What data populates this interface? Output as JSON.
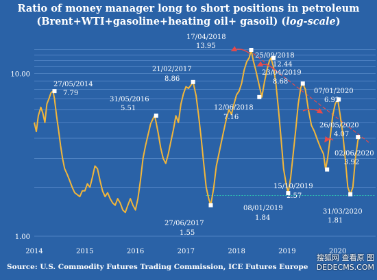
{
  "title_line1": "Ratio of money manager long to short positions in petroleum",
  "title_line2_main": "(Brent+WTI+gasoline+heating oil+ gasoil) (",
  "title_line2_italic": "log-scale",
  "title_line2_end": ")",
  "source": "Source: U.S. Commodity Futures Trading Commission, ICE Futures Europe",
  "watermark_line1": "搜狐网 查看原 图",
  "watermark_line2": "DEDECMS.COM",
  "colors": {
    "background": "#2a62a7",
    "series": "#f2b63a",
    "gridline": "#5a8ccc",
    "trend": "#e84a4a",
    "baseline": "#2fc7b1",
    "marker": "#ffffff"
  },
  "chart_data": {
    "type": "line",
    "yscale": "log",
    "ylim": [
      1.0,
      14.5
    ],
    "xlim": [
      2014.0,
      2020.75
    ],
    "yticks": [
      {
        "value": 1.0,
        "label": "1.00"
      },
      {
        "value": 10.0,
        "label": "10.00"
      }
    ],
    "xticks": [
      {
        "value": 2014,
        "label": "2014"
      },
      {
        "value": 2015,
        "label": "2015"
      },
      {
        "value": 2016,
        "label": "2016"
      },
      {
        "value": 2017,
        "label": "2017"
      },
      {
        "value": 2018,
        "label": "2018"
      },
      {
        "value": 2019,
        "label": "2019"
      },
      {
        "value": 2020,
        "label": "2020"
      }
    ],
    "grid": "horizontal",
    "series": [
      {
        "x": [
          2014.0,
          2014.04,
          2014.08,
          2014.13,
          2014.17,
          2014.21,
          2014.25,
          2014.29,
          2014.33,
          2014.37,
          2014.4,
          2014.44,
          2014.48,
          2014.52,
          2014.56,
          2014.6,
          2014.65,
          2014.7,
          2014.75,
          2014.8,
          2014.85,
          2014.9,
          2014.95,
          2015.0,
          2015.05,
          2015.1,
          2015.15,
          2015.2,
          2015.25,
          2015.3,
          2015.35,
          2015.4,
          2015.45,
          2015.5,
          2015.55,
          2015.6,
          2015.65,
          2015.7,
          2015.75,
          2015.8,
          2015.85,
          2015.9,
          2015.95,
          2016.0,
          2016.05,
          2016.1,
          2016.15,
          2016.2,
          2016.25,
          2016.3,
          2016.35,
          2016.38,
          2016.41,
          2016.45,
          2016.5,
          2016.55,
          2016.6,
          2016.65,
          2016.7,
          2016.75,
          2016.8,
          2016.85,
          2016.9,
          2016.95,
          2017.0,
          2017.05,
          2017.1,
          2017.14,
          2017.2,
          2017.25,
          2017.3,
          2017.35,
          2017.4,
          2017.45,
          2017.49,
          2017.55,
          2017.6,
          2017.65,
          2017.7,
          2017.75,
          2017.8,
          2017.85,
          2017.9,
          2017.95,
          2018.0,
          2018.05,
          2018.1,
          2018.15,
          2018.2,
          2018.25,
          2018.29,
          2018.33,
          2018.38,
          2018.45,
          2018.5,
          2018.55,
          2018.6,
          2018.65,
          2018.68,
          2018.73,
          2018.78,
          2018.83,
          2018.88,
          2018.93,
          2018.98,
          2019.02,
          2019.07,
          2019.12,
          2019.17,
          2019.22,
          2019.27,
          2019.31,
          2019.36,
          2019.42,
          2019.48,
          2019.54,
          2019.6,
          2019.66,
          2019.72,
          2019.76,
          2019.8,
          2019.85,
          2019.9,
          2019.95,
          2020.0,
          2020.05,
          2020.1,
          2020.15,
          2020.2,
          2020.25,
          2020.3,
          2020.35,
          2020.4,
          2020.45
        ],
        "y": [
          5.0,
          4.4,
          5.5,
          6.2,
          5.7,
          5.0,
          6.5,
          7.0,
          7.6,
          7.8,
          7.0,
          5.5,
          4.5,
          3.6,
          3.0,
          2.6,
          2.4,
          2.2,
          2.0,
          1.85,
          1.8,
          1.75,
          1.9,
          1.9,
          2.1,
          2.0,
          2.3,
          2.7,
          2.6,
          2.2,
          1.9,
          1.75,
          1.85,
          1.7,
          1.6,
          1.55,
          1.7,
          1.6,
          1.45,
          1.4,
          1.55,
          1.7,
          1.55,
          1.45,
          1.7,
          2.2,
          3.0,
          3.6,
          4.2,
          4.9,
          5.3,
          5.51,
          5.0,
          4.3,
          3.5,
          3.0,
          2.8,
          3.2,
          3.8,
          4.5,
          5.5,
          5.0,
          6.5,
          7.5,
          8.3,
          8.1,
          8.5,
          8.86,
          7.3,
          5.5,
          4.0,
          2.8,
          2.0,
          1.7,
          1.55,
          2.0,
          2.7,
          3.2,
          3.8,
          4.5,
          5.3,
          6.0,
          5.6,
          6.5,
          7.4,
          7.8,
          8.7,
          10.5,
          11.8,
          12.5,
          13.95,
          12.0,
          10.5,
          8.4,
          7.16,
          8.8,
          10.5,
          12.0,
          12.44,
          11.0,
          8.5,
          6.0,
          4.0,
          2.6,
          2.1,
          1.84,
          2.3,
          3.2,
          4.5,
          6.5,
          8.2,
          8.68,
          8.0,
          6.0,
          4.8,
          4.4,
          3.9,
          3.5,
          3.2,
          2.57,
          3.0,
          4.0,
          5.5,
          6.5,
          6.92,
          5.5,
          4.3,
          3.0,
          2.0,
          1.81,
          2.0,
          3.0,
          3.9,
          4.07
        ],
        "highlights": [
          {
            "x": 2014.4,
            "y": 7.79
          },
          {
            "x": 2016.41,
            "y": 5.51
          },
          {
            "x": 2017.14,
            "y": 8.86
          },
          {
            "x": 2017.49,
            "y": 1.55
          },
          {
            "x": 2018.29,
            "y": 13.95
          },
          {
            "x": 2018.45,
            "y": 7.16
          },
          {
            "x": 2018.73,
            "y": 12.44
          },
          {
            "x": 2019.02,
            "y": 1.84
          },
          {
            "x": 2019.31,
            "y": 8.68
          },
          {
            "x": 2019.79,
            "y": 2.57
          },
          {
            "x": 2020.02,
            "y": 6.92
          },
          {
            "x": 2020.25,
            "y": 1.81
          },
          {
            "x": 2020.4,
            "y": 4.07
          }
        ]
      }
    ],
    "trendline": {
      "x": [
        2018.33,
        2020.65
      ],
      "y": [
        13.3,
        3.7
      ]
    },
    "baseline_value": 1.78,
    "annotations": [
      {
        "date": "27/05/2014",
        "value": "7.79"
      },
      {
        "date": "31/05/2016",
        "value": "5.51"
      },
      {
        "date": "21/02/2017",
        "value": "8.86"
      },
      {
        "date": "27/06/2017",
        "value": "1.55"
      },
      {
        "date": "17/04/2018",
        "value": "13.95"
      },
      {
        "date": "12/06/2018",
        "value": "7.16"
      },
      {
        "date": "25/09/2018",
        "value": "12.44"
      },
      {
        "date": "08/01/2019",
        "value": "1.84"
      },
      {
        "date": "23/04/2019",
        "value": "8.68"
      },
      {
        "date": "15/10/2019",
        "value": "2.57"
      },
      {
        "date": "07/01/2020",
        "value": "6.92"
      },
      {
        "date": "26/05/2020",
        "value": "4.07"
      },
      {
        "date": "02/06/2020",
        "value": "3.92"
      },
      {
        "date": "31/03/2020",
        "value": "1.81"
      }
    ]
  }
}
